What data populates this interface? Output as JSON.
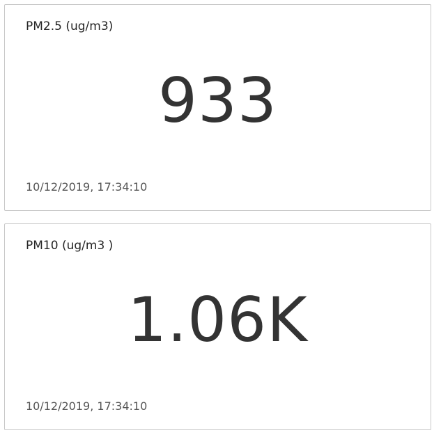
{
  "tiles": [
    {
      "title": "PM2.5 (ug/m3)",
      "value": "933",
      "timestamp": "10/12/2019, 17:34:10"
    },
    {
      "title": "PM10 (ug/m3 )",
      "value": "1.06K",
      "timestamp": "10/12/2019, 17:34:10"
    }
  ],
  "colors": {
    "border": "#c8c8c8",
    "text": "#333333",
    "background": "#ffffff"
  }
}
